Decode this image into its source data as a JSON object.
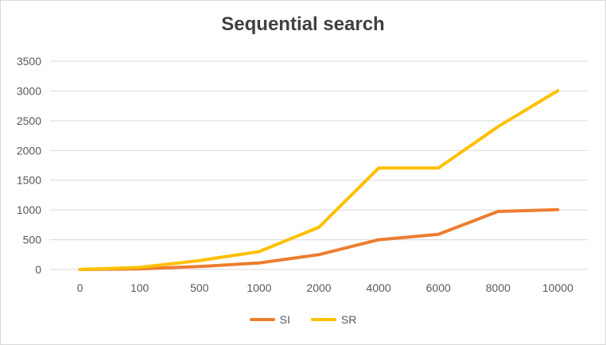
{
  "chart_data": {
    "type": "line",
    "title": "Sequential search",
    "categories": [
      "0",
      "100",
      "500",
      "1000",
      "2000",
      "4000",
      "6000",
      "8000",
      "10000"
    ],
    "series": [
      {
        "name": "SI",
        "color": "#ED7D31",
        "values": [
          0,
          10,
          50,
          110,
          250,
          500,
          590,
          975,
          1005
        ]
      },
      {
        "name": "SR",
        "color": "#FFC000",
        "values": [
          0,
          35,
          150,
          300,
          710,
          1705,
          1705,
          2400,
          3005
        ]
      }
    ],
    "ylim": [
      0,
      3500
    ],
    "yticks": [
      0,
      500,
      1000,
      1500,
      2000,
      2500,
      3000,
      3500
    ],
    "grid": true,
    "legend_position": "bottom"
  }
}
